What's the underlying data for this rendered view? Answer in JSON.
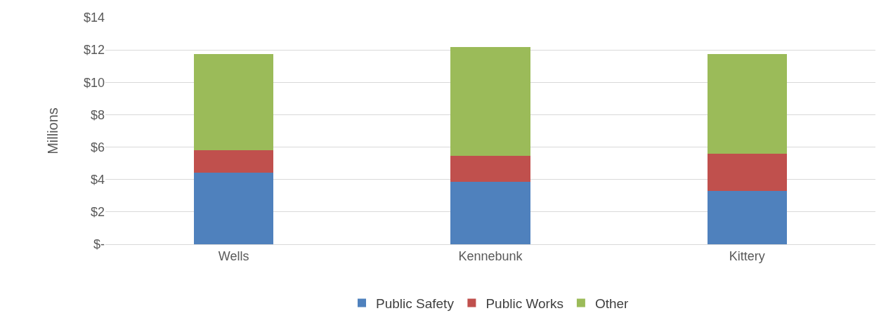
{
  "chart_data": {
    "type": "bar",
    "stacked": true,
    "ylabel": "Millions",
    "categories": [
      "Wells",
      "Kennebunk",
      "Kittery"
    ],
    "series": [
      {
        "name": "Public Safety",
        "color": "#4f81bd",
        "values": [
          4.4,
          3.85,
          3.3
        ]
      },
      {
        "name": "Public Works",
        "color": "#c0504d",
        "values": [
          1.4,
          1.6,
          2.3
        ]
      },
      {
        "name": "Other",
        "color": "#9bbb59",
        "values": [
          5.95,
          6.75,
          6.15
        ]
      }
    ],
    "ylim": [
      0,
      14
    ],
    "yticks": [
      {
        "value": 0,
        "label": "$-"
      },
      {
        "value": 2,
        "label": "$2"
      },
      {
        "value": 4,
        "label": "$4"
      },
      {
        "value": 6,
        "label": "$6"
      },
      {
        "value": 8,
        "label": "$8"
      },
      {
        "value": 10,
        "label": "$10"
      },
      {
        "value": 12,
        "label": "$12"
      },
      {
        "value": 14,
        "label": "$14"
      }
    ],
    "grid": "y",
    "legend": "bottom"
  }
}
